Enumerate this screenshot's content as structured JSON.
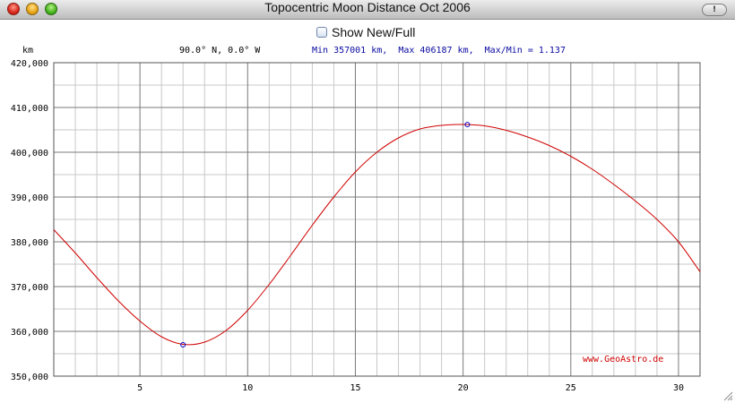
{
  "window": {
    "title": "Topocentric Moon Distance  Oct 2006",
    "close_glyph": "×",
    "minimize_glyph": "–",
    "zoom_glyph": "+",
    "toolbar_toggle_glyph": "!"
  },
  "controls": {
    "show_new_full_label": "Show New/Full",
    "show_new_full_checked": false
  },
  "header": {
    "unit": "km",
    "location": "90.0° N, 0.0° W",
    "minmax": "Min 357001 km,  Max 406187 km,  Max/Min = 1.137"
  },
  "credit": "www.GeoAstro.de",
  "colors": {
    "curve": "#d00000",
    "marker": "#0000cc",
    "grid_major": "#7a7a7a",
    "grid_minor": "#c8c8c8",
    "minmax_text": "#0a0aa0",
    "credit_text": "#d00000"
  },
  "chart_data": {
    "type": "line",
    "title": "",
    "xlabel": "",
    "ylabel": "km",
    "xlim": [
      1,
      31
    ],
    "ylim": [
      350000,
      420000
    ],
    "x_ticks": [
      5,
      10,
      15,
      20,
      25,
      30
    ],
    "x_tick_labels": [
      "5",
      "10",
      "15",
      "20",
      "25",
      "30"
    ],
    "y_ticks": [
      350000,
      360000,
      370000,
      380000,
      390000,
      400000,
      410000,
      420000
    ],
    "y_tick_labels": [
      "350,000",
      "360,000",
      "370,000",
      "380,000",
      "390,000",
      "400,000",
      "410,000",
      "420,000"
    ],
    "grid": true,
    "series": [
      {
        "x": [
          1,
          2,
          3,
          4,
          5,
          6,
          7,
          8,
          9,
          10,
          11,
          12,
          13,
          14,
          15,
          16,
          17,
          18,
          19,
          20,
          21,
          22,
          23,
          24,
          25,
          26,
          27,
          28,
          29,
          30,
          31
        ],
        "values": [
          382700,
          377500,
          372000,
          366800,
          362300,
          358800,
          357100,
          357600,
          360200,
          364700,
          370500,
          377000,
          383700,
          390000,
          395600,
          400000,
          403200,
          405200,
          406000,
          406200,
          405900,
          404900,
          403400,
          401500,
          399100,
          396200,
          392800,
          389100,
          385000,
          380000,
          373300
        ]
      }
    ],
    "markers": [
      {
        "label": "Min",
        "x": 7,
        "y": 357001
      },
      {
        "label": "Max",
        "x": 20.2,
        "y": 406187
      }
    ]
  }
}
